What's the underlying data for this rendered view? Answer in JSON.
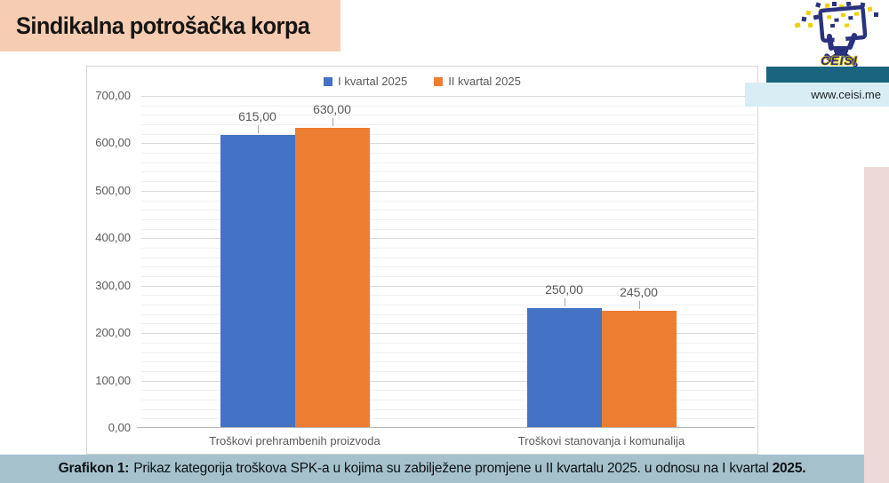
{
  "header": {
    "title": "Sindikalna potrošačka korpa"
  },
  "logo": {
    "brand": "CEISI",
    "url_text": "www.ceisi.me"
  },
  "caption": {
    "label": "Grafikon 1:",
    "text": "Prikaz kategorija troškova SPK-a u kojima su zabilježene promjene u II kvartalu 2025. u odnosu na I kvartal",
    "tail": "2025."
  },
  "colors": {
    "peach_header": "#f6cdb3",
    "teal_bar": "#1a6480",
    "url_strip_bg": "#d9edf4",
    "pink_bar": "#ecd9d8",
    "caption_bg": "#a5c2cc",
    "logo_navy": "#2a327f",
    "logo_yellow": "#edd100",
    "grid_major": "#d9d9d9",
    "axis_text": "#595959"
  },
  "chart_data": {
    "type": "bar",
    "title": "",
    "categories": [
      "Troškovi prehrambenih proizvoda",
      "Troškovi stanovanja i komunalija"
    ],
    "series": [
      {
        "name": "I kvartal 2025",
        "color": "#4472c4",
        "values": [
          615,
          250
        ],
        "value_labels": [
          "615,00",
          "250,00"
        ]
      },
      {
        "name": "II kvartal 2025",
        "color": "#ed7d31",
        "values": [
          630,
          245
        ],
        "value_labels": [
          "630,00",
          "245,00"
        ]
      }
    ],
    "y_axis": {
      "min": 0,
      "max": 700,
      "major_step": 100,
      "minor_step": 20,
      "tick_labels": [
        "0,00",
        "100,00",
        "200,00",
        "300,00",
        "400,00",
        "500,00",
        "600,00",
        "700,00"
      ]
    },
    "xlabel": "",
    "ylabel": "",
    "ylim": [
      0,
      700
    ],
    "grid": true,
    "legend_position": "top"
  }
}
